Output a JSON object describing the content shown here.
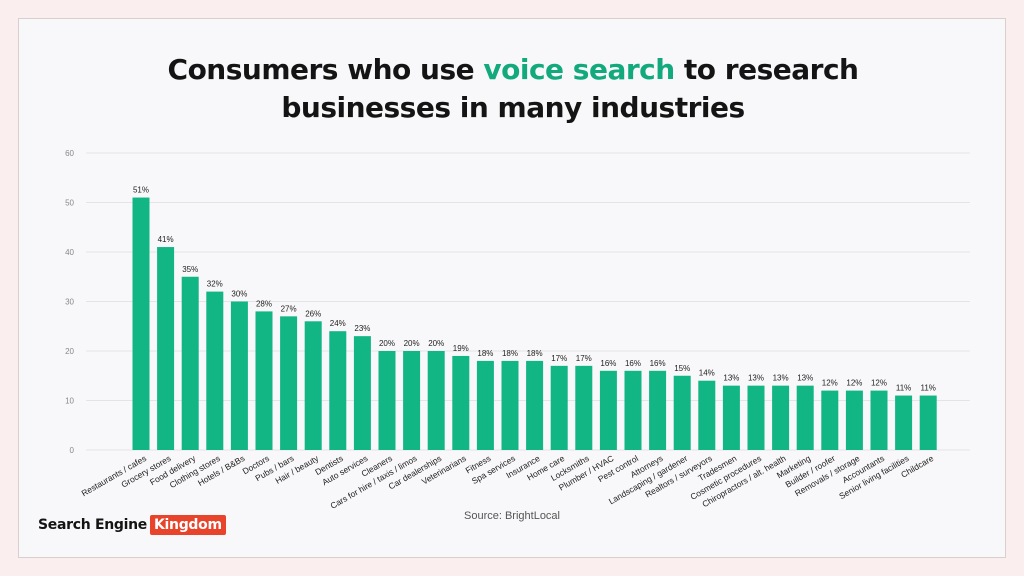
{
  "header": {
    "title_part1": "Consumers who use ",
    "title_highlight": "voice search",
    "title_part2": " to research",
    "title_line2": "businesses in many industries"
  },
  "footer": {
    "source": "Source: BrightLocal",
    "logo_part1": "Search Engine",
    "logo_part2": "Kingdom"
  },
  "colors": {
    "bar": "#12b584",
    "highlight": "#12a97c",
    "grid": "#e3e3e8",
    "logo_accent": "#e8442c"
  },
  "chart_data": {
    "type": "bar",
    "title": "Consumers who use voice search to research businesses in many industries",
    "xlabel": "",
    "ylabel": "",
    "ylim": [
      0,
      60
    ],
    "yticks": [
      0,
      10,
      20,
      30,
      40,
      50,
      60
    ],
    "grid": true,
    "categories": [
      "Restaurants / cafes",
      "Grocery stores",
      "Food delivery",
      "Clothing stores",
      "Hotels / B&Bs",
      "Doctors",
      "Pubs / bars",
      "Hair / beauty",
      "Dentists",
      "Auto services",
      "Cleaners",
      "Cars for hire / taxis / limos",
      "Car dealerships",
      "Veterinarians",
      "Fitness",
      "Spa services",
      "Insurance",
      "Home care",
      "Locksmiths",
      "Plumber / HVAC",
      "Pest control",
      "Attorneys",
      "Landscaping / gardener",
      "Realtors / surveyors",
      "Tradesmen",
      "Cosmetic procedures",
      "Chiropractors / alt. health",
      "Marketing",
      "Builder / roofer",
      "Removals / storage",
      "Accountants",
      "Senior living facilities",
      "Childcare"
    ],
    "values": [
      51,
      41,
      35,
      32,
      30,
      28,
      27,
      26,
      24,
      23,
      20,
      20,
      20,
      19,
      18,
      18,
      18,
      17,
      17,
      16,
      16,
      16,
      15,
      14,
      13,
      13,
      13,
      13,
      12,
      12,
      12,
      11,
      11
    ],
    "data_labels": [
      "51%",
      "41%",
      "35%",
      "32%",
      "30%",
      "28%",
      "27%",
      "26%",
      "24%",
      "23%",
      "20%",
      "20%",
      "20%",
      "19%",
      "18%",
      "18%",
      "18%",
      "17%",
      "17%",
      "16%",
      "16%",
      "16%",
      "15%",
      "14%",
      "13%",
      "13%",
      "13%",
      "13%",
      "12%",
      "12%",
      "12%",
      "11%",
      "11%"
    ]
  }
}
